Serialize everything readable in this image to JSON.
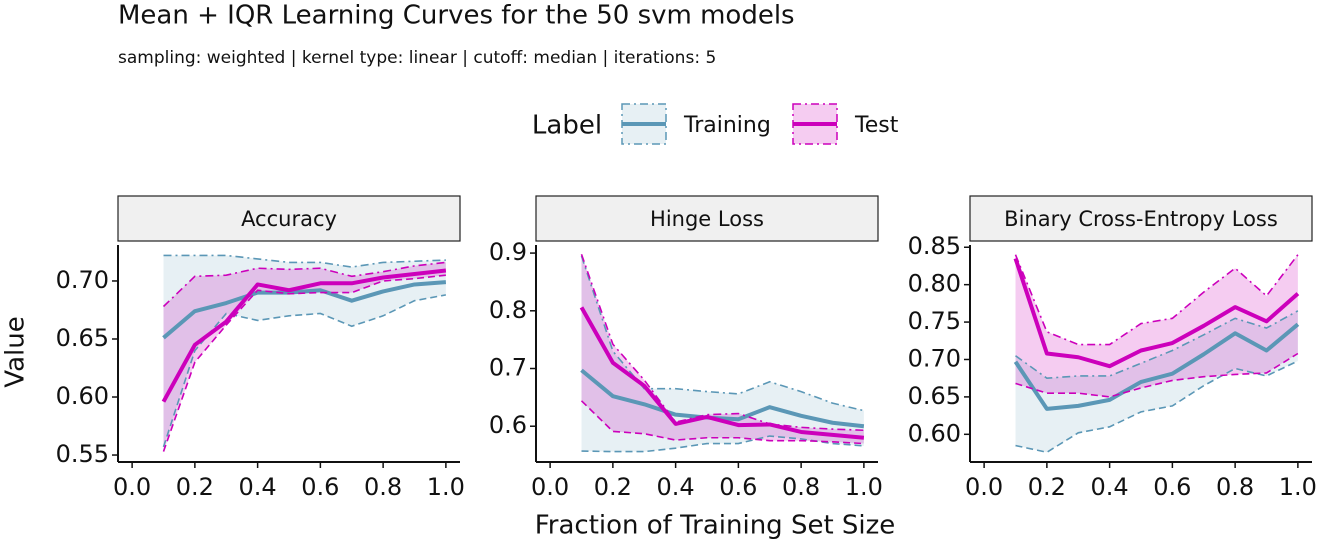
{
  "title": "Mean + IQR Learning Curves for the 50 svm models",
  "subtitle": "sampling: weighted | kernel type: linear | cutoff: median | iterations: 5",
  "x_label": "Fraction of Training Set Size",
  "y_label": "Value",
  "legend": {
    "title": "Label",
    "entries": [
      {
        "name": "Training",
        "color": "#5b97b6"
      },
      {
        "name": "Test",
        "color": "#cc00bb"
      }
    ]
  },
  "chart_data": [
    {
      "type": "line",
      "title": "Accuracy",
      "x": [
        0.1,
        0.2,
        0.3,
        0.4,
        0.5,
        0.6,
        0.7,
        0.8,
        0.9,
        1.0
      ],
      "xlim": [
        -0.045,
        1.045
      ],
      "xticks": [
        {
          "value": 0,
          "label": "0.0"
        },
        0.2,
        0.4,
        0.6,
        0.8,
        {
          "value": 1,
          "label": "1.0"
        }
      ],
      "ylim": [
        0.544,
        0.731
      ],
      "yticks": [
        0.55,
        {
          "value": 0.6,
          "label": "0.60"
        },
        0.65,
        {
          "value": 0.7,
          "label": "0.70"
        }
      ],
      "series": [
        {
          "values": [
            0.651,
            0.674,
            0.681,
            0.69,
            0.69,
            0.692,
            0.683,
            0.691,
            0.697,
            0.699
          ],
          "upper": [
            0.722,
            0.722,
            0.722,
            0.719,
            0.716,
            0.716,
            0.712,
            0.716,
            0.717,
            0.718
          ],
          "lower": [
            0.557,
            0.64,
            0.672,
            0.666,
            0.67,
            0.672,
            0.661,
            0.67,
            0.683,
            0.688
          ]
        },
        {
          "values": [
            0.596,
            0.645,
            0.665,
            0.697,
            0.692,
            0.698,
            0.698,
            0.703,
            0.706,
            0.709
          ],
          "upper": [
            0.678,
            0.704,
            0.705,
            0.711,
            0.71,
            0.711,
            0.704,
            0.708,
            0.713,
            0.716
          ],
          "lower": [
            0.553,
            0.63,
            0.662,
            0.692,
            0.689,
            0.69,
            0.69,
            0.7,
            0.702,
            0.705
          ]
        }
      ]
    },
    {
      "type": "line",
      "title": "Hinge Loss",
      "x": [
        0.1,
        0.2,
        0.3,
        0.4,
        0.5,
        0.6,
        0.7,
        0.8,
        0.9,
        1.0
      ],
      "xlim": [
        -0.045,
        1.045
      ],
      "xticks": [
        {
          "value": 0,
          "label": "0.0"
        },
        0.2,
        0.4,
        0.6,
        0.8,
        {
          "value": 1,
          "label": "1.0"
        }
      ],
      "ylim": [
        0.538,
        0.914
      ],
      "yticks": [
        0.6,
        0.7,
        0.8,
        0.9
      ],
      "series": [
        {
          "values": [
            0.697,
            0.652,
            0.638,
            0.62,
            0.615,
            0.612,
            0.633,
            0.618,
            0.606,
            0.6
          ],
          "upper": [
            0.895,
            0.73,
            0.665,
            0.665,
            0.66,
            0.656,
            0.677,
            0.66,
            0.64,
            0.627
          ],
          "lower": [
            0.557,
            0.556,
            0.556,
            0.562,
            0.57,
            0.57,
            0.583,
            0.578,
            0.57,
            0.566
          ]
        },
        {
          "values": [
            0.806,
            0.71,
            0.67,
            0.604,
            0.616,
            0.602,
            0.603,
            0.59,
            0.585,
            0.58
          ],
          "upper": [
            0.898,
            0.742,
            0.68,
            0.607,
            0.62,
            0.622,
            0.604,
            0.598,
            0.595,
            0.593
          ],
          "lower": [
            0.644,
            0.591,
            0.587,
            0.576,
            0.58,
            0.58,
            0.575,
            0.575,
            0.573,
            0.57
          ]
        }
      ]
    },
    {
      "type": "line",
      "title": "Binary Cross-Entropy Loss",
      "x": [
        0.1,
        0.2,
        0.3,
        0.4,
        0.5,
        0.6,
        0.7,
        0.8,
        0.9,
        1.0
      ],
      "xlim": [
        -0.045,
        1.045
      ],
      "xticks": [
        {
          "value": 0,
          "label": "0.0"
        },
        0.2,
        0.4,
        0.6,
        0.8,
        {
          "value": 1,
          "label": "1.0"
        }
      ],
      "ylim": [
        0.563,
        0.853
      ],
      "yticks": [
        {
          "value": 0.6,
          "label": "0.60"
        },
        0.65,
        {
          "value": 0.7,
          "label": "0.70"
        },
        0.75,
        {
          "value": 0.8,
          "label": "0.80"
        },
        0.85
      ],
      "series": [
        {
          "values": [
            0.697,
            0.634,
            0.638,
            0.646,
            0.67,
            0.681,
            0.707,
            0.735,
            0.712,
            0.747
          ],
          "upper": [
            0.705,
            0.675,
            0.678,
            0.678,
            0.695,
            0.712,
            0.733,
            0.755,
            0.742,
            0.765
          ],
          "lower": [
            0.585,
            0.576,
            0.602,
            0.61,
            0.63,
            0.638,
            0.665,
            0.688,
            0.678,
            0.698
          ]
        },
        {
          "values": [
            0.835,
            0.708,
            0.703,
            0.691,
            0.712,
            0.722,
            0.745,
            0.77,
            0.751,
            0.788
          ],
          "upper": [
            0.84,
            0.737,
            0.72,
            0.72,
            0.748,
            0.755,
            0.79,
            0.822,
            0.785,
            0.84
          ],
          "lower": [
            0.668,
            0.655,
            0.655,
            0.65,
            0.662,
            0.672,
            0.677,
            0.68,
            0.682,
            0.708
          ]
        }
      ]
    }
  ]
}
